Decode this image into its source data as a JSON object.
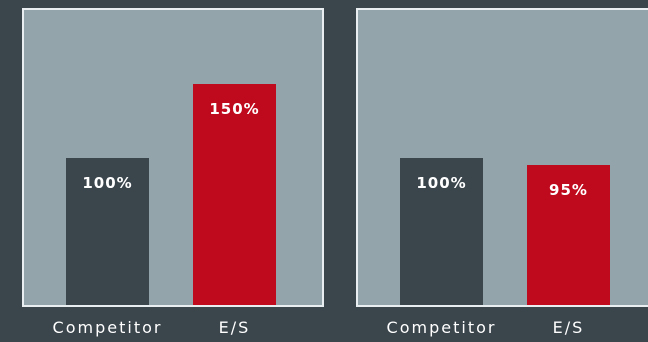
{
  "colors": {
    "background": "#3a454c",
    "panel": "#93a5ab",
    "panel_border": "#e9eef0",
    "competitor_bar": "#3a454c",
    "es_bar": "#bf0a1e",
    "text": "#ffffff"
  },
  "chart_data": [
    {
      "type": "bar",
      "categories": [
        "Competitor",
        "E/S"
      ],
      "values": [
        100,
        150
      ],
      "data_labels": [
        "100%",
        "150%"
      ],
      "title": "",
      "xlabel": "",
      "ylabel": "",
      "ylim": [
        0,
        180
      ],
      "grid": false,
      "legend": "none"
    },
    {
      "type": "bar",
      "categories": [
        "Competitor",
        "E/S"
      ],
      "values": [
        100,
        95
      ],
      "data_labels": [
        "100%",
        "95%"
      ],
      "title": "",
      "xlabel": "",
      "ylabel": "",
      "ylim": [
        0,
        180
      ],
      "grid": false,
      "legend": "none"
    }
  ]
}
